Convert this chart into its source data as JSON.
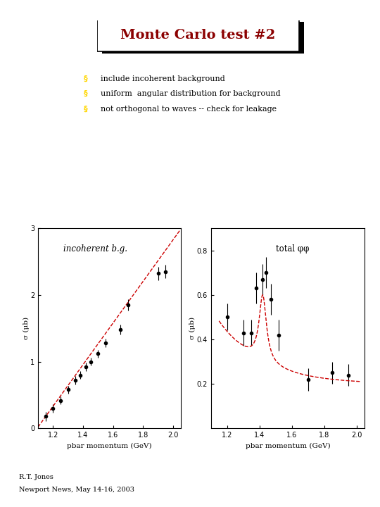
{
  "title": "Monte Carlo test #2",
  "title_color": "#8B0000",
  "bullet_color": "#FFD700",
  "bullet_items": [
    "include incoherent background",
    "uniform  angular distribution for background",
    "not orthogonal to waves -- check for leakage"
  ],
  "footer_line1": "R.T. Jones",
  "footer_line2": "Newport News, May 14-16, 2003",
  "left_plot": {
    "label": "incoherent b.g.",
    "xlabel": "pbar momentum (GeV)",
    "ylabel": "σ (μb)",
    "xlim": [
      1.1,
      2.05
    ],
    "ylim": [
      0,
      3
    ],
    "yticks": [
      0,
      1,
      2,
      3
    ],
    "xticks": [
      1.2,
      1.4,
      1.6,
      1.8,
      2.0
    ],
    "data_x": [
      1.15,
      1.2,
      1.25,
      1.3,
      1.35,
      1.38,
      1.42,
      1.45,
      1.5,
      1.55,
      1.65,
      1.7,
      1.9,
      1.95
    ],
    "data_y": [
      0.18,
      0.3,
      0.42,
      0.58,
      0.72,
      0.8,
      0.92,
      1.0,
      1.12,
      1.28,
      1.48,
      1.85,
      2.32,
      2.35
    ],
    "data_yerr": [
      0.07,
      0.06,
      0.06,
      0.06,
      0.06,
      0.06,
      0.06,
      0.06,
      0.06,
      0.06,
      0.07,
      0.08,
      0.1,
      0.1
    ],
    "fit_x": [
      1.1,
      2.05
    ],
    "fit_y": [
      0.02,
      2.98
    ],
    "fit_color": "#CC0000",
    "fit_linestyle": "dashed"
  },
  "right_plot": {
    "label": "total φφ",
    "xlabel": "pbar momentum (GeV)",
    "ylabel": "σ (μb)",
    "xlim": [
      1.1,
      2.05
    ],
    "ylim": [
      0,
      0.9
    ],
    "yticks": [
      0.2,
      0.4,
      0.6,
      0.8
    ],
    "xticks": [
      1.2,
      1.4,
      1.6,
      1.8,
      2.0
    ],
    "data_x": [
      1.2,
      1.3,
      1.35,
      1.38,
      1.42,
      1.44,
      1.47,
      1.52,
      1.7,
      1.85,
      1.95
    ],
    "data_y": [
      0.5,
      0.43,
      0.43,
      0.63,
      0.67,
      0.7,
      0.58,
      0.42,
      0.22,
      0.25,
      0.24
    ],
    "data_yerr_lo": [
      0.06,
      0.06,
      0.06,
      0.07,
      0.07,
      0.07,
      0.07,
      0.07,
      0.05,
      0.05,
      0.05
    ],
    "data_yerr_hi": [
      0.06,
      0.06,
      0.06,
      0.07,
      0.07,
      0.07,
      0.07,
      0.07,
      0.05,
      0.05,
      0.05
    ],
    "fit_color": "#CC0000",
    "fit_linestyle": "dashed",
    "fit_m0": 1.42,
    "fit_gamma": 0.055,
    "fit_A": 0.3,
    "fit_bg_a": 0.2,
    "fit_bg_b": 0.28,
    "fit_bg_c": 3.8
  }
}
